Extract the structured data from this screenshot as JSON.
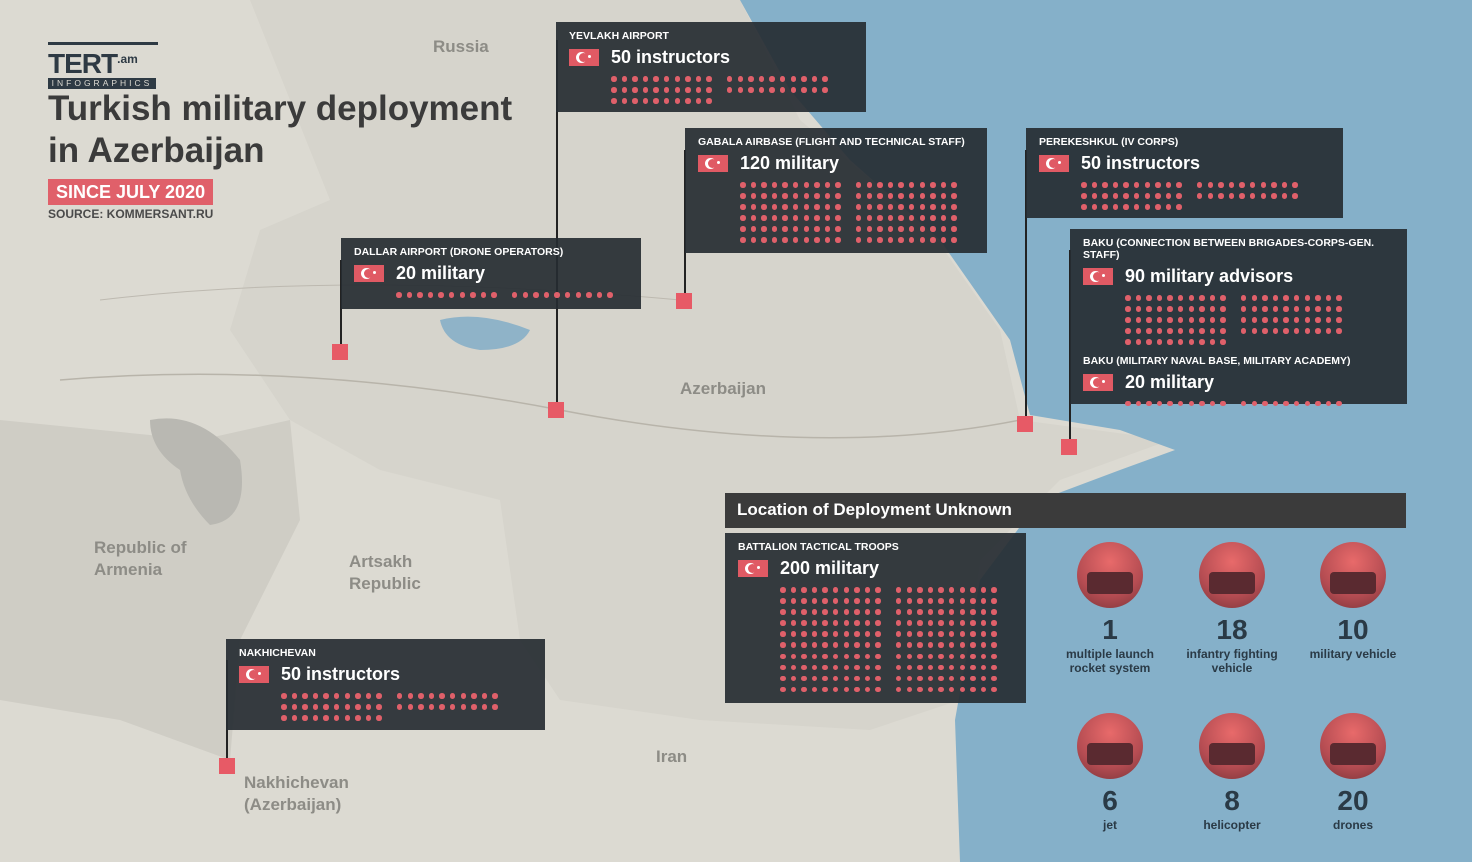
{
  "logo": {
    "name": "TERT",
    "suffix": ".am",
    "sub": "INFOGRAPHICS"
  },
  "title_line1": "Turkish military deployment",
  "title_line2": "in Azerbaijan",
  "since": "SINCE JULY 2020",
  "source": "SOURCE: KOMMERSANT.RU",
  "colors": {
    "sea": "#85b0c9",
    "land": "#dcdad2",
    "box": "#262c32",
    "accent": "#e0606a"
  },
  "map_labels": {
    "russia": "Russia",
    "azerbaijan": "Azerbaijan",
    "armenia": "Republic of Armenia",
    "artsakh": "Artsakh Republic",
    "iran": "Iran",
    "nakhichevan": "Nakhichevan (Azerbaijan)"
  },
  "deployments": [
    {
      "id": "yevlakh",
      "caption": "YEVLAKH AIRPORT",
      "label": "50 instructors",
      "count": 50
    },
    {
      "id": "gabala",
      "caption": "GABALA AIRBASE (FLIGHT AND TECHNICAL STAFF)",
      "label": "120 military",
      "count": 120
    },
    {
      "id": "dallar",
      "caption": "DALLAR AIRPORT (DRONE OPERATORS)",
      "label": "20 military",
      "count": 20
    },
    {
      "id": "perekeshkul",
      "caption": "PEREKESHKUL (IV CORPS)",
      "label": "50 instructors",
      "count": 50
    },
    {
      "id": "baku1",
      "caption": "BAKU (CONNECTION BETWEEN BRIGADES-CORPS-GEN. STAFF)",
      "label": "90 military advisors",
      "count": 90
    },
    {
      "id": "baku2",
      "caption": "BAKU (MILITARY NAVAL BASE, MILITARY ACADEMY)",
      "label": "20 military",
      "count": 20
    },
    {
      "id": "nakhichevan",
      "caption": "NAKHICHEVAN",
      "label": "50 instructors",
      "count": 50
    },
    {
      "id": "battalion",
      "caption": "BATTALION TACTICAL TROOPS",
      "label": "200 military",
      "count": 200
    }
  ],
  "unknown_header": "Location of Deployment Unknown",
  "equipment": [
    {
      "number": "1",
      "label": "multiple launch rocket system",
      "icon": "rocket-launcher"
    },
    {
      "number": "18",
      "label": "infantry fighting vehicle",
      "icon": "ifv"
    },
    {
      "number": "10",
      "label": "military vehicle",
      "icon": "armored-vehicle"
    },
    {
      "number": "6",
      "label": "jet",
      "icon": "jet"
    },
    {
      "number": "8",
      "label": "helicopter",
      "icon": "helicopter"
    },
    {
      "number": "20",
      "label": "drones",
      "icon": "drone"
    }
  ]
}
